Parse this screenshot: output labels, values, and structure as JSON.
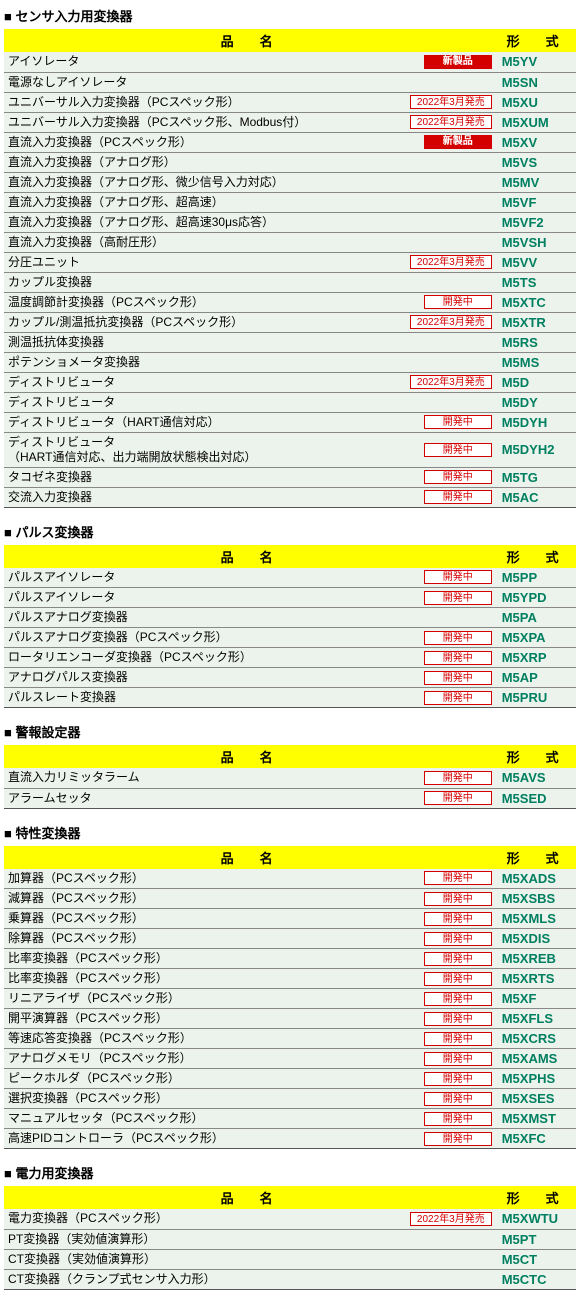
{
  "badges": {
    "new": "新製品",
    "dev": "開発中",
    "date": "2022年3月発売"
  },
  "headers": {
    "name": "品　名",
    "model": "形　式"
  },
  "sections": [
    {
      "title": "■ センサ入力用変換器",
      "rows": [
        {
          "name": "アイソレータ",
          "badge": "new",
          "model": "M5YV"
        },
        {
          "name": "電源なしアイソレータ",
          "badge": null,
          "model": "M5SN"
        },
        {
          "name": "ユニバーサル入力変換器（PCスペック形）",
          "badge": "date",
          "model": "M5XU"
        },
        {
          "name": "ユニバーサル入力変換器（PCスペック形、Modbus付）",
          "badge": "date",
          "model": "M5XUM"
        },
        {
          "name": "直流入力変換器（PCスペック形）",
          "badge": "new",
          "model": "M5XV"
        },
        {
          "name": "直流入力変換器（アナログ形）",
          "badge": null,
          "model": "M5VS"
        },
        {
          "name": "直流入力変換器（アナログ形、微少信号入力対応）",
          "badge": null,
          "model": "M5MV"
        },
        {
          "name": "直流入力変換器（アナログ形、超高速）",
          "badge": null,
          "model": "M5VF"
        },
        {
          "name": "直流入力変換器（アナログ形、超高速30μs応答）",
          "badge": null,
          "model": "M5VF2"
        },
        {
          "name": "直流入力変換器（高耐圧形）",
          "badge": null,
          "model": "M5VSH"
        },
        {
          "name": "分圧ユニット",
          "badge": "date",
          "model": "M5VV"
        },
        {
          "name": "カップル変換器",
          "badge": null,
          "model": "M5TS"
        },
        {
          "name": "温度調節計変換器（PCスペック形）",
          "badge": "dev",
          "model": "M5XTC"
        },
        {
          "name": "カップル/測温抵抗変換器（PCスペック形）",
          "badge": "date",
          "model": "M5XTR"
        },
        {
          "name": "測温抵抗体変換器",
          "badge": null,
          "model": "M5RS"
        },
        {
          "name": "ポテンショメータ変換器",
          "badge": null,
          "model": "M5MS"
        },
        {
          "name": "ディストリビュータ",
          "badge": "date",
          "model": "M5D"
        },
        {
          "name": "ディストリビュータ",
          "badge": null,
          "model": "M5DY"
        },
        {
          "name": "ディストリビュータ（HART通信対応）",
          "badge": "dev",
          "model": "M5DYH"
        },
        {
          "name": "ディストリビュータ\n（HART通信対応、出力端開放状態検出対応）",
          "badge": "dev",
          "model": "M5DYH2"
        },
        {
          "name": "タコゼネ変換器",
          "badge": "dev",
          "model": "M5TG"
        },
        {
          "name": "交流入力変換器",
          "badge": "dev",
          "model": "M5AC"
        }
      ]
    },
    {
      "title": "■ パルス変換器",
      "rows": [
        {
          "name": "パルスアイソレータ",
          "badge": "dev",
          "model": "M5PP"
        },
        {
          "name": "パルスアイソレータ",
          "badge": "dev",
          "model": "M5YPD"
        },
        {
          "name": "パルスアナログ変換器",
          "badge": null,
          "model": "M5PA"
        },
        {
          "name": "パルスアナログ変換器（PCスペック形）",
          "badge": "dev",
          "model": "M5XPA"
        },
        {
          "name": "ロータリエンコーダ変換器（PCスペック形）",
          "badge": "dev",
          "model": "M5XRP"
        },
        {
          "name": "アナログパルス変換器",
          "badge": "dev",
          "model": "M5AP"
        },
        {
          "name": "パルスレート変換器",
          "badge": "dev",
          "model": "M5PRU"
        }
      ]
    },
    {
      "title": "■ 警報設定器",
      "rows": [
        {
          "name": "直流入力リミッタラーム",
          "badge": "dev",
          "model": "M5AVS"
        },
        {
          "name": "アラームセッタ",
          "badge": "dev",
          "model": "M5SED"
        }
      ]
    },
    {
      "title": "■ 特性変換器",
      "rows": [
        {
          "name": "加算器（PCスペック形）",
          "badge": "dev",
          "model": "M5XADS"
        },
        {
          "name": "減算器（PCスペック形）",
          "badge": "dev",
          "model": "M5XSBS"
        },
        {
          "name": "乗算器（PCスペック形）",
          "badge": "dev",
          "model": "M5XMLS"
        },
        {
          "name": "除算器（PCスペック形）",
          "badge": "dev",
          "model": "M5XDIS"
        },
        {
          "name": "比率変換器（PCスペック形）",
          "badge": "dev",
          "model": "M5XREB"
        },
        {
          "name": "比率変換器（PCスペック形）",
          "badge": "dev",
          "model": "M5XRTS"
        },
        {
          "name": "リニアライザ（PCスペック形）",
          "badge": "dev",
          "model": "M5XF"
        },
        {
          "name": "開平演算器（PCスペック形）",
          "badge": "dev",
          "model": "M5XFLS"
        },
        {
          "name": "等速応答変換器（PCスペック形）",
          "badge": "dev",
          "model": "M5XCRS"
        },
        {
          "name": "アナログメモリ（PCスペック形）",
          "badge": "dev",
          "model": "M5XAMS"
        },
        {
          "name": "ピークホルダ（PCスペック形）",
          "badge": "dev",
          "model": "M5XPHS"
        },
        {
          "name": "選択変換器（PCスペック形）",
          "badge": "dev",
          "model": "M5XSES"
        },
        {
          "name": "マニュアルセッタ（PCスペック形）",
          "badge": "dev",
          "model": "M5XMST"
        },
        {
          "name": "高速PIDコントローラ（PCスペック形）",
          "badge": "dev",
          "model": "M5XFC"
        }
      ]
    },
    {
      "title": "■ 電力用変換器",
      "rows": [
        {
          "name": "電力変換器（PCスペック形）",
          "badge": "date",
          "model": "M5XWTU"
        },
        {
          "name": "PT変換器（実効値演算形）",
          "badge": null,
          "model": "M5PT"
        },
        {
          "name": "CT変換器（実効値演算形）",
          "badge": null,
          "model": "M5CT"
        },
        {
          "name": "CT変換器（クランプ式センサ入力形）",
          "badge": null,
          "model": "M5CTC"
        }
      ]
    }
  ]
}
